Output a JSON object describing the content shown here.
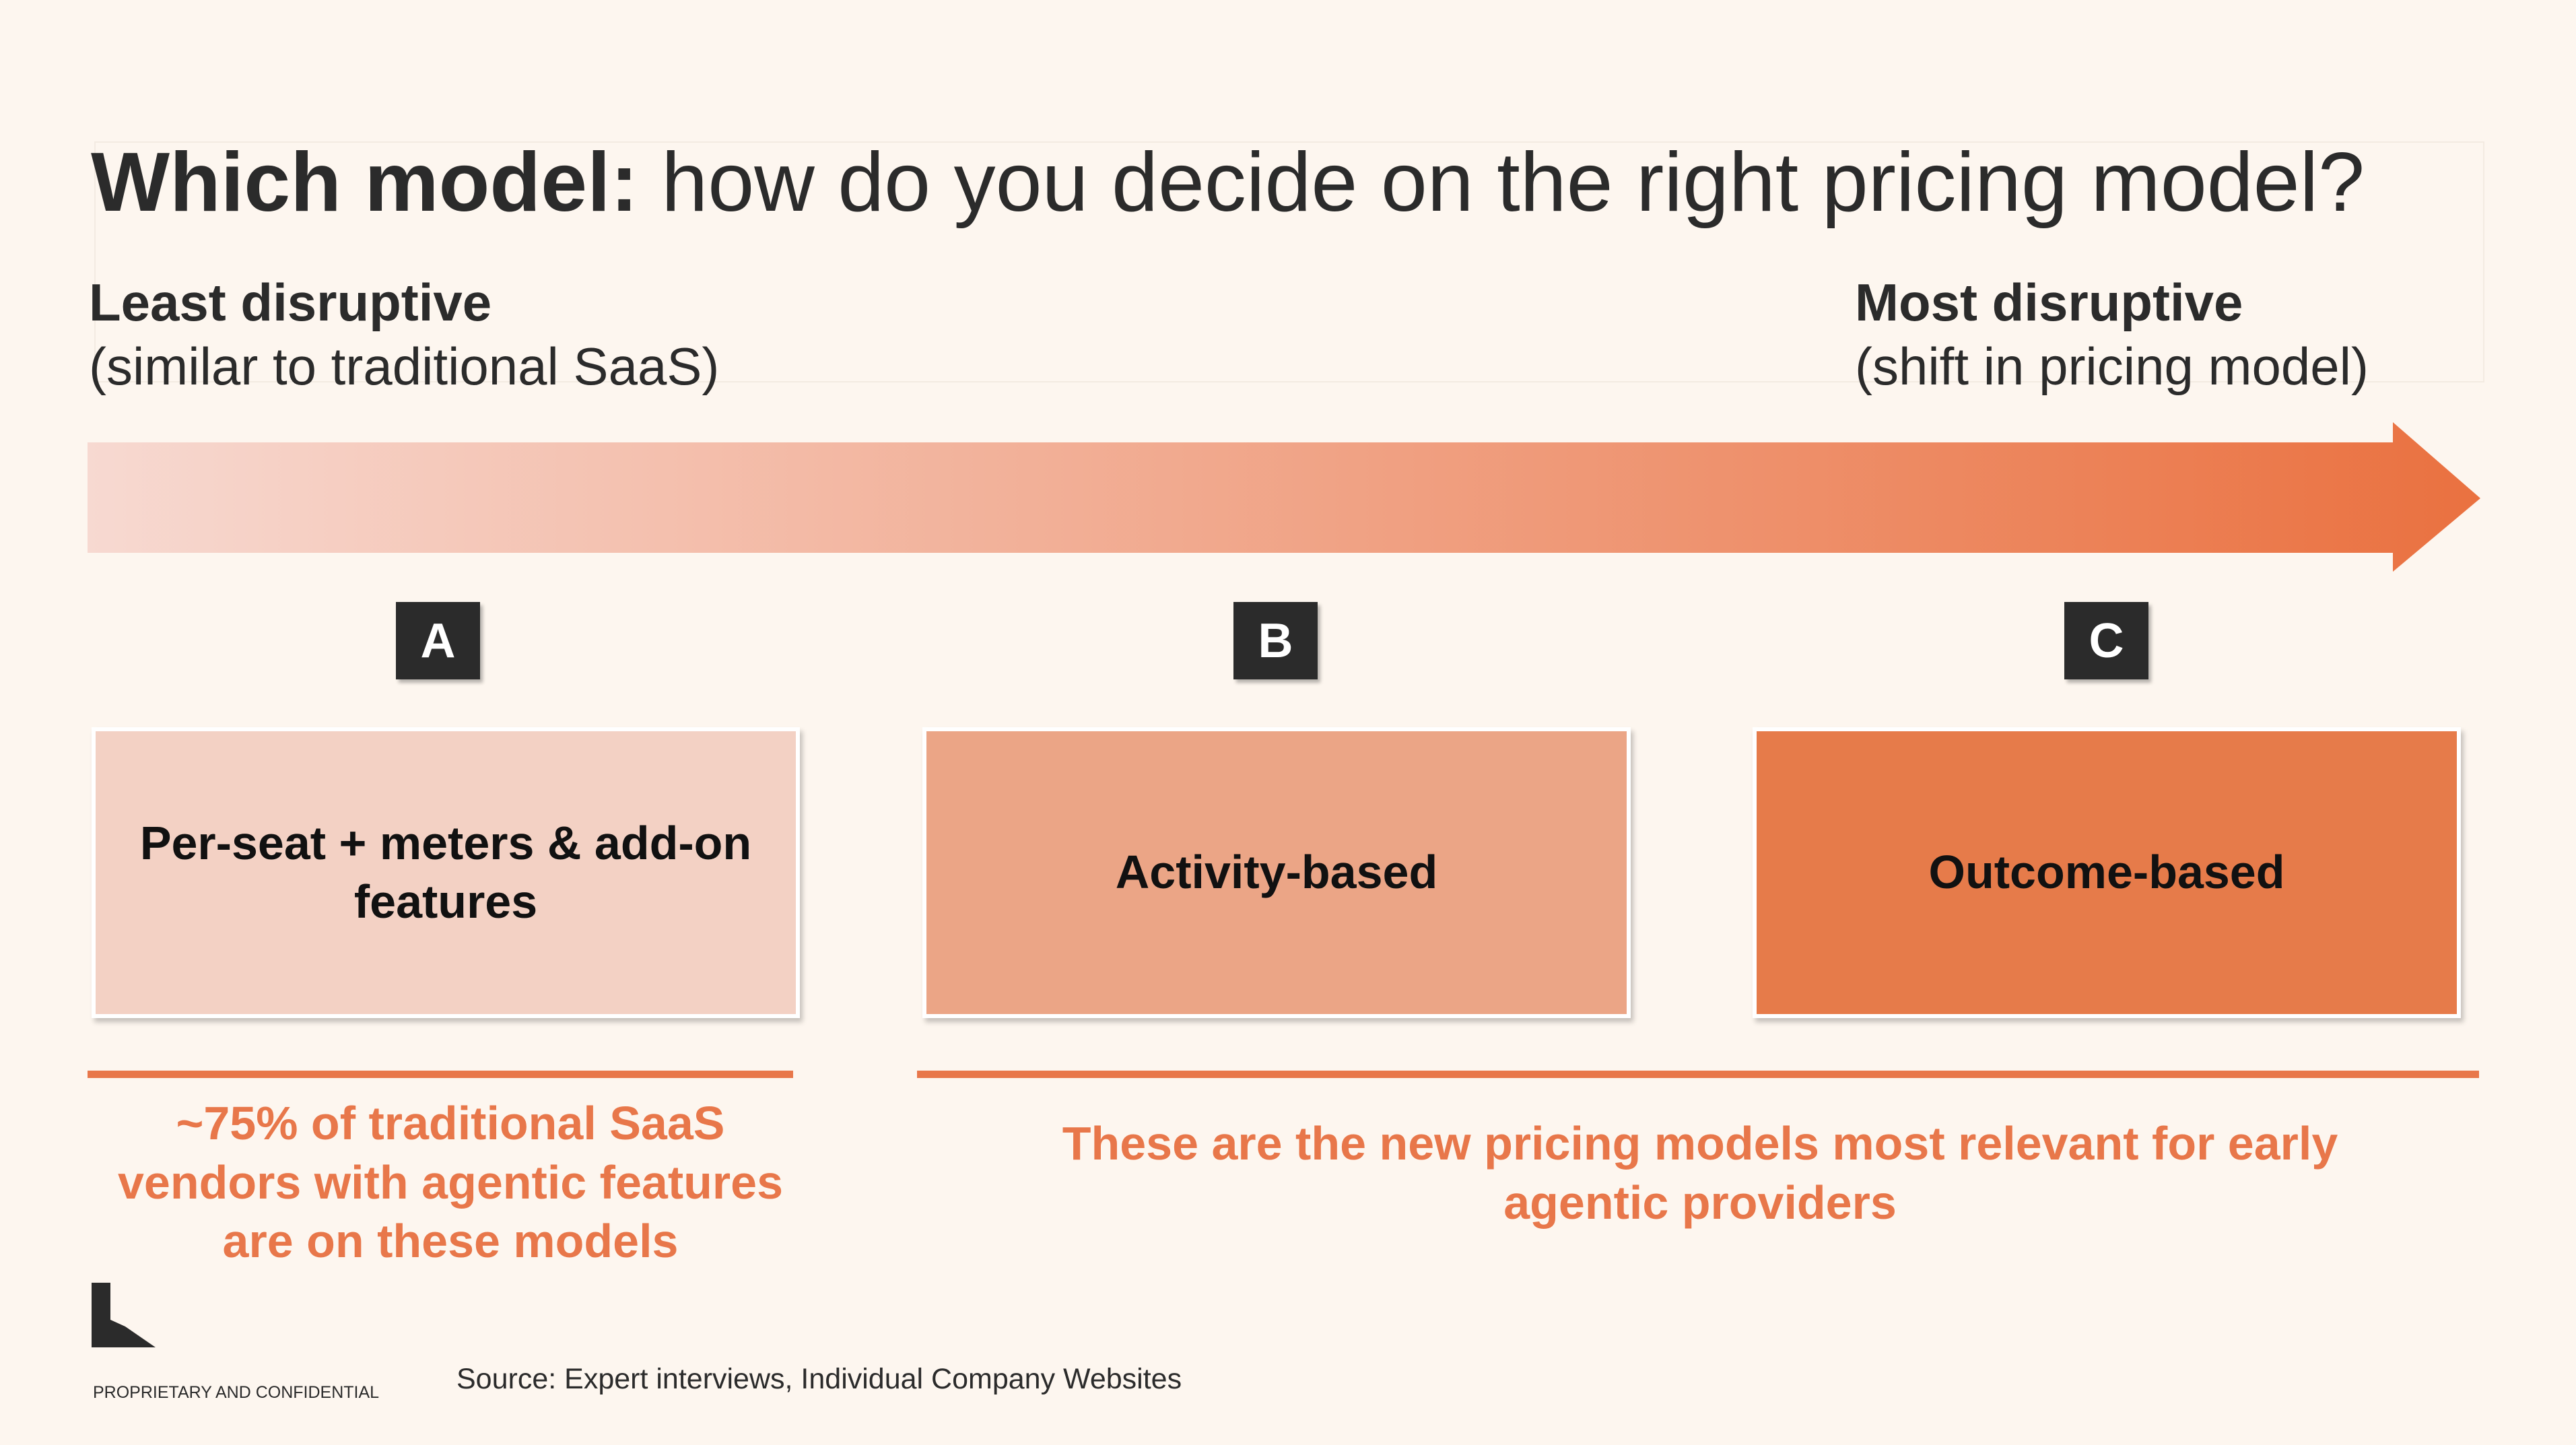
{
  "title": {
    "bold": "Which model:",
    "rest": " how do you decide on the right pricing model?"
  },
  "scale": {
    "left": {
      "heading": "Least disruptive",
      "subtext": "(similar to traditional SaaS)"
    },
    "right": {
      "heading": "Most disruptive",
      "subtext": "(shift in pricing model)"
    }
  },
  "arrow_colors": {
    "start": "#f7d9d1",
    "end": "#ea7140"
  },
  "models": [
    {
      "badge": "A",
      "label": "Per-seat + meters & add-on features",
      "color": "#f3d1c4"
    },
    {
      "badge": "B",
      "label": "Activity-based",
      "color": "#eba586"
    },
    {
      "badge": "C",
      "label": "Outcome-based",
      "color": "#e67b4a"
    }
  ],
  "notes": {
    "left": "~75% of traditional SaaS vendors with agentic features are on these models",
    "right": "These are the new pricing models most relevant for early agentic providers"
  },
  "accent_color": "#e8774a",
  "footer": {
    "confidential": "PROPRIETARY AND CONFIDENTIAL",
    "source": "Source: Expert interviews, Individual Company Websites"
  }
}
